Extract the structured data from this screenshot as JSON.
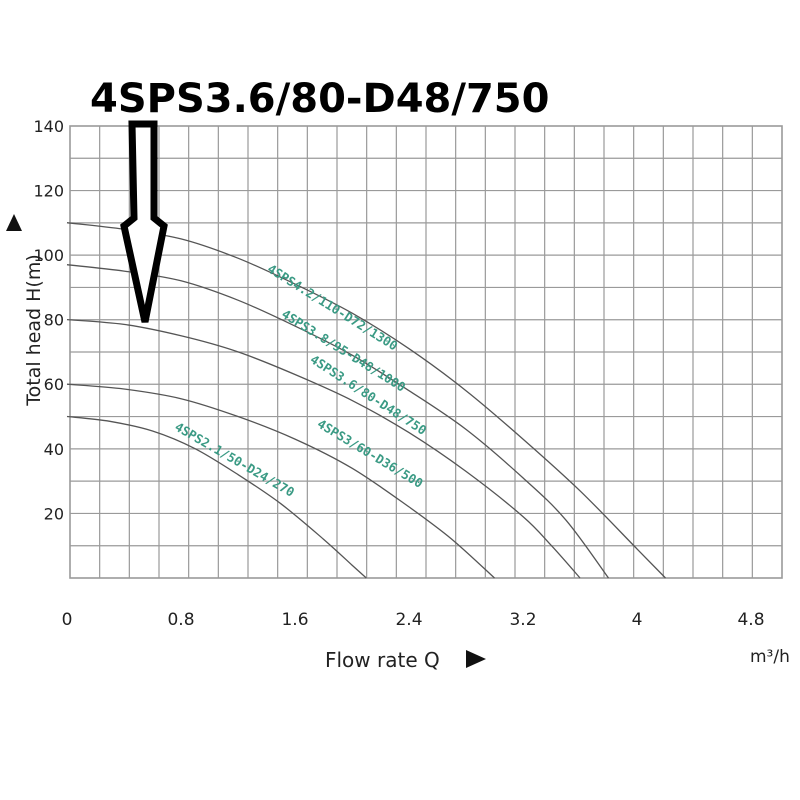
{
  "headline": "4SPS3.6/80-D48/750",
  "ylabel": "Total head H(m)",
  "xlabel": "Flow rate Q",
  "x_unit": "m³/h",
  "colors": {
    "label_text": "#3a9a84",
    "curve": "#555555",
    "grid": "#9a9a9a"
  },
  "chart_data": {
    "type": "line",
    "title": "4SPS3.6/80-D48/750",
    "xlabel": "Flow rate Q",
    "ylabel": "Total head H(m)",
    "x_unit": "m³/h",
    "xlim": [
      0,
      5.0
    ],
    "ylim": [
      0,
      140
    ],
    "x_ticks": [
      0,
      0.8,
      1.6,
      2.4,
      3.2,
      4,
      4.8
    ],
    "x_tick_labels": [
      "0",
      "0.8",
      "1.6",
      "2.4",
      "3.2",
      "4",
      "4.8"
    ],
    "y_ticks": [
      20,
      40,
      60,
      80,
      100,
      120,
      140
    ],
    "y_tick_labels": [
      "20",
      "40",
      "60",
      "80",
      "100",
      "120",
      "140"
    ],
    "grid": true,
    "series": [
      {
        "name": "4SPS4.2/110-D72/1300",
        "x": [
          0,
          0.4,
          0.8,
          1.2,
          1.6,
          2.0,
          2.4,
          2.8,
          3.2,
          3.6,
          4.0,
          4.2
        ],
        "y": [
          110,
          108,
          105,
          99,
          91,
          82,
          71,
          58,
          43,
          27,
          9,
          0
        ]
      },
      {
        "name": "4SPS3.8/95-D48/1000",
        "x": [
          0,
          0.4,
          0.8,
          1.2,
          1.6,
          2.0,
          2.4,
          2.8,
          3.2,
          3.5,
          3.8
        ],
        "y": [
          97,
          95,
          92,
          86,
          78,
          69,
          58,
          46,
          31,
          18,
          0
        ]
      },
      {
        "name": "4SPS3.6/80-D48/750",
        "x": [
          0,
          0.4,
          0.8,
          1.2,
          1.6,
          2.0,
          2.4,
          2.8,
          3.2,
          3.4,
          3.6
        ],
        "y": [
          80,
          78.5,
          75,
          70,
          63,
          55,
          45,
          33,
          19,
          10,
          0
        ]
      },
      {
        "name": "4SPS3/60-D36/500",
        "x": [
          0,
          0.4,
          0.8,
          1.2,
          1.6,
          2.0,
          2.4,
          2.7,
          3.0
        ],
        "y": [
          60,
          58.5,
          55.5,
          50,
          43,
          34,
          22,
          12,
          0
        ]
      },
      {
        "name": "4SPS2.1/50-D24/270",
        "x": [
          0,
          0.3,
          0.6,
          0.9,
          1.2,
          1.5,
          1.8,
          2.0,
          2.1
        ],
        "y": [
          50,
          48.5,
          45.5,
          40,
          32,
          23,
          12,
          4,
          0
        ]
      }
    ]
  }
}
